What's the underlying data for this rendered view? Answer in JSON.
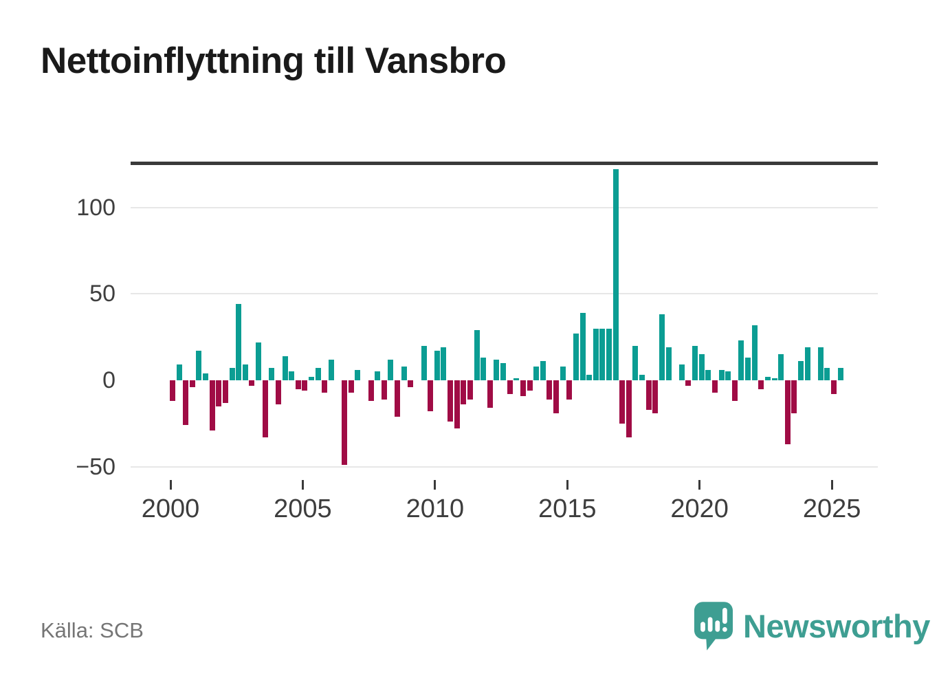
{
  "title": "Nettoinflyttning till Vansbro",
  "source": {
    "text": "Källa: SCB"
  },
  "brand": {
    "name": "Newsworthy"
  },
  "colors": {
    "positive_bar": "#0b9d93",
    "negative_bar": "#a00c45",
    "axis": "#3a3a3a",
    "gridline": "#e7e7e7",
    "tick_label": "#3f3f3f",
    "title_text": "#1a1a1a",
    "source_text": "#757575",
    "brand_teal": "#3e9e92",
    "background": "#ffffff"
  },
  "chart_data": {
    "type": "bar",
    "title": "Nettoinflyttning till Vansbro",
    "x_start": "2000 Q1",
    "x_end": "2025 Q2",
    "x_frequency": "quarterly",
    "x_tick_labels": [
      "2000",
      "2005",
      "2010",
      "2015",
      "2020",
      "2025"
    ],
    "y_ticks": [
      100,
      50,
      0,
      -50
    ],
    "y_tick_labels": [
      "100",
      "50",
      "0",
      "−50"
    ],
    "gridline_values": [
      100,
      50,
      -50
    ],
    "ylim": [
      -62,
      130
    ],
    "grid": "horizontal",
    "legend": "none",
    "bar_colors": {
      "positive": "#0b9d93",
      "negative": "#a00c45"
    },
    "values": [
      -12,
      9,
      -26,
      -4,
      17,
      4,
      -29,
      -15,
      -13,
      7,
      44,
      9,
      -3,
      22,
      -33,
      7,
      -14,
      14,
      5,
      -5,
      -6,
      2,
      7,
      -7,
      12,
      0,
      -49,
      -7,
      6,
      0,
      -12,
      5,
      -11,
      12,
      -21,
      8,
      -4,
      0,
      20,
      -18,
      17,
      19,
      -24,
      -28,
      -14,
      -11,
      29,
      13,
      -16,
      12,
      10,
      -8,
      1,
      -9,
      -6,
      8,
      11,
      -11,
      -19,
      8,
      -11,
      27,
      39,
      3,
      30,
      30,
      30,
      122,
      -25,
      -33,
      20,
      3,
      -17,
      -19,
      38,
      19,
      0,
      9,
      -3,
      20,
      15,
      6,
      -7,
      6,
      5,
      -12,
      23,
      13,
      32,
      -5,
      2,
      1,
      15,
      -37,
      -19,
      11,
      19,
      0,
      19,
      7,
      -8,
      7
    ]
  }
}
